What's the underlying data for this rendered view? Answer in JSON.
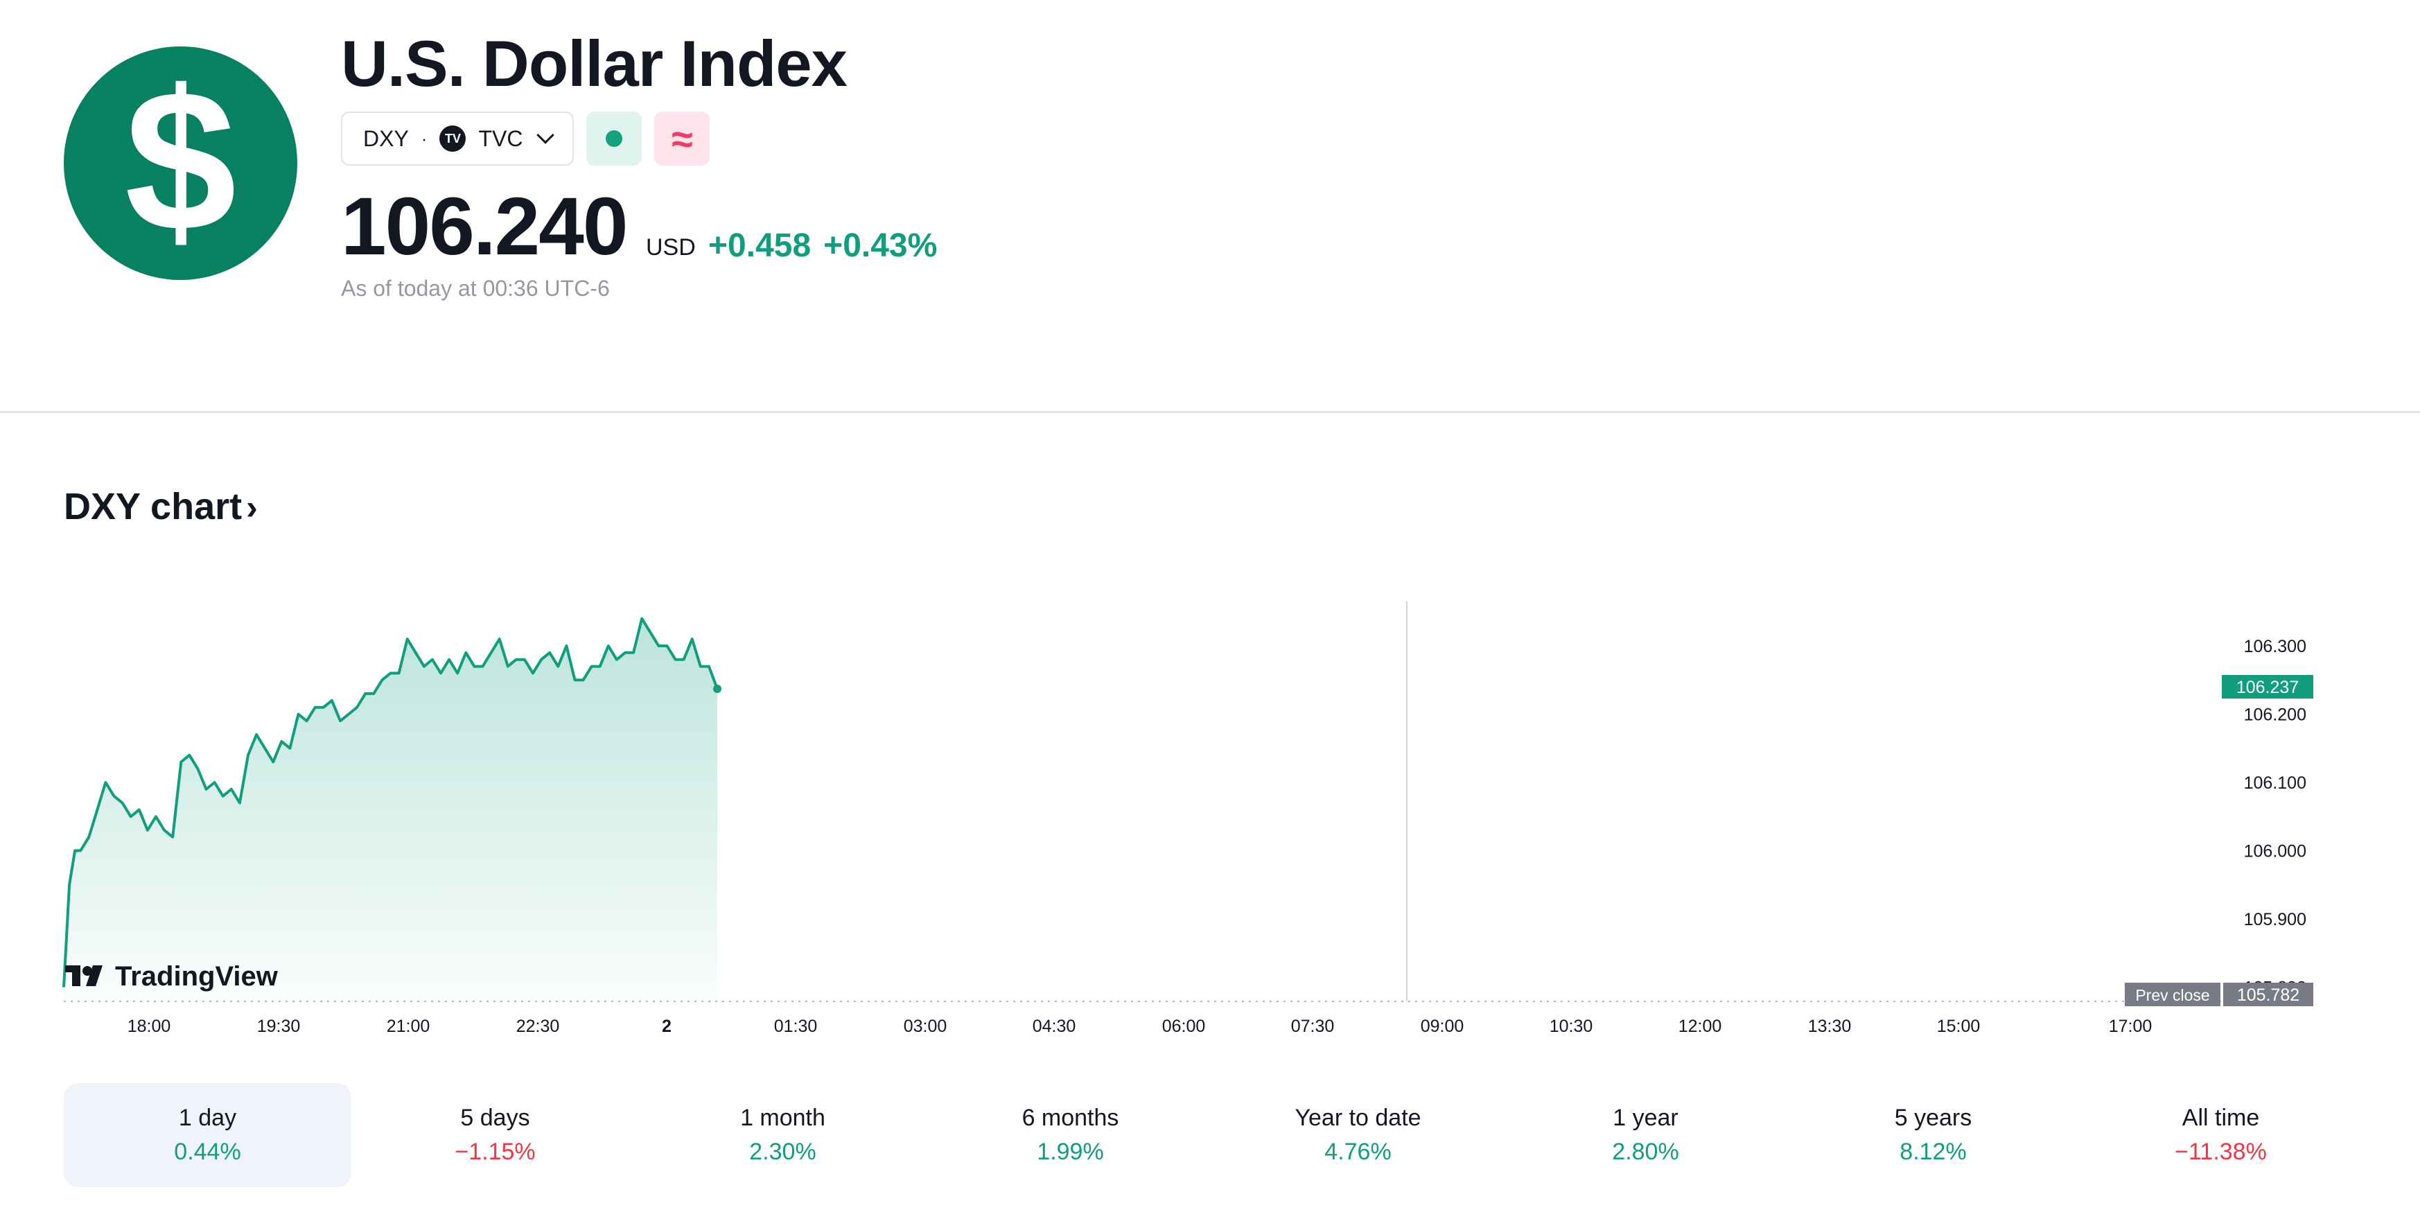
{
  "header": {
    "logo_symbol": "$",
    "logo_color": "#088062",
    "title": "U.S. Dollar Index",
    "symbol": "DXY",
    "separator": "·",
    "exchange_icon": "tv-logo-icon",
    "exchange_logo_text": "TV",
    "exchange": "TVC",
    "pink_badge_symbol": "≈",
    "price": "106.240",
    "currency": "USD",
    "change": "+0.458",
    "change_percent": "+0.43%",
    "as_of": "As of today at 00:36 UTC-6"
  },
  "chart_section": {
    "title": "DXY chart",
    "arrow": "›",
    "watermark": "TradingView"
  },
  "chart_data": {
    "type": "area",
    "x_ticks": [
      "18:00",
      "19:30",
      "21:00",
      "22:30",
      "2",
      "01:30",
      "03:00",
      "04:30",
      "06:00",
      "07:30",
      "09:00",
      "10:30",
      "12:00",
      "13:30",
      "15:00",
      "17:00"
    ],
    "y_ticks": [
      "106.300",
      "106.200",
      "106.100",
      "106.000",
      "105.900",
      "105.800"
    ],
    "ylim": [
      105.782,
      106.37
    ],
    "current_value_label": "106.237",
    "prev_close_label": "Prev close",
    "prev_close_value": "105.782",
    "series": [
      {
        "x_minutes": [
          0,
          4,
          8,
          12,
          18,
          24,
          30,
          36,
          42,
          48,
          54,
          60,
          66,
          72,
          78,
          84,
          90,
          96,
          102,
          108,
          114,
          120,
          126,
          132,
          138,
          144,
          150,
          156,
          162,
          168,
          174,
          180,
          186,
          192,
          198,
          204,
          210,
          216,
          222,
          228,
          234,
          240,
          246,
          252,
          258,
          264,
          270,
          276,
          282,
          288,
          294,
          300,
          306,
          312,
          318,
          324,
          330,
          336,
          342,
          348,
          354,
          360,
          366,
          372,
          378,
          384,
          390,
          396,
          402,
          408,
          414,
          420,
          426,
          432,
          438,
          444,
          450,
          456,
          462,
          468
        ],
        "values": [
          105.8,
          105.95,
          106.0,
          106.0,
          106.02,
          106.06,
          106.1,
          106.08,
          106.07,
          106.05,
          106.06,
          106.03,
          106.05,
          106.03,
          106.02,
          106.13,
          106.14,
          106.12,
          106.09,
          106.1,
          106.08,
          106.09,
          106.07,
          106.14,
          106.17,
          106.15,
          106.13,
          106.16,
          106.15,
          106.2,
          106.19,
          106.21,
          106.21,
          106.22,
          106.19,
          106.2,
          106.21,
          106.23,
          106.23,
          106.25,
          106.26,
          106.26,
          106.31,
          106.29,
          106.27,
          106.28,
          106.26,
          106.28,
          106.26,
          106.29,
          106.27,
          106.27,
          106.29,
          106.31,
          106.27,
          106.28,
          106.28,
          106.26,
          106.28,
          106.29,
          106.27,
          106.3,
          106.25,
          106.25,
          106.27,
          106.27,
          106.3,
          106.28,
          106.29,
          106.29,
          106.34,
          106.32,
          106.3,
          106.3,
          106.28,
          106.28,
          106.31,
          106.27,
          106.27,
          106.237
        ]
      }
    ],
    "line_color": "#109e7e"
  },
  "periods": [
    {
      "label": "1 day",
      "value": "0.44%",
      "sign": "pos",
      "active": true
    },
    {
      "label": "5 days",
      "value": "−1.15%",
      "sign": "neg",
      "active": false
    },
    {
      "label": "1 month",
      "value": "2.30%",
      "sign": "pos",
      "active": false
    },
    {
      "label": "6 months",
      "value": "1.99%",
      "sign": "pos",
      "active": false
    },
    {
      "label": "Year to date",
      "value": "4.76%",
      "sign": "pos",
      "active": false
    },
    {
      "label": "1 year",
      "value": "2.80%",
      "sign": "pos",
      "active": false
    },
    {
      "label": "5 years",
      "value": "8.12%",
      "sign": "pos",
      "active": false
    },
    {
      "label": "All time",
      "value": "−11.38%",
      "sign": "neg",
      "active": false
    }
  ]
}
